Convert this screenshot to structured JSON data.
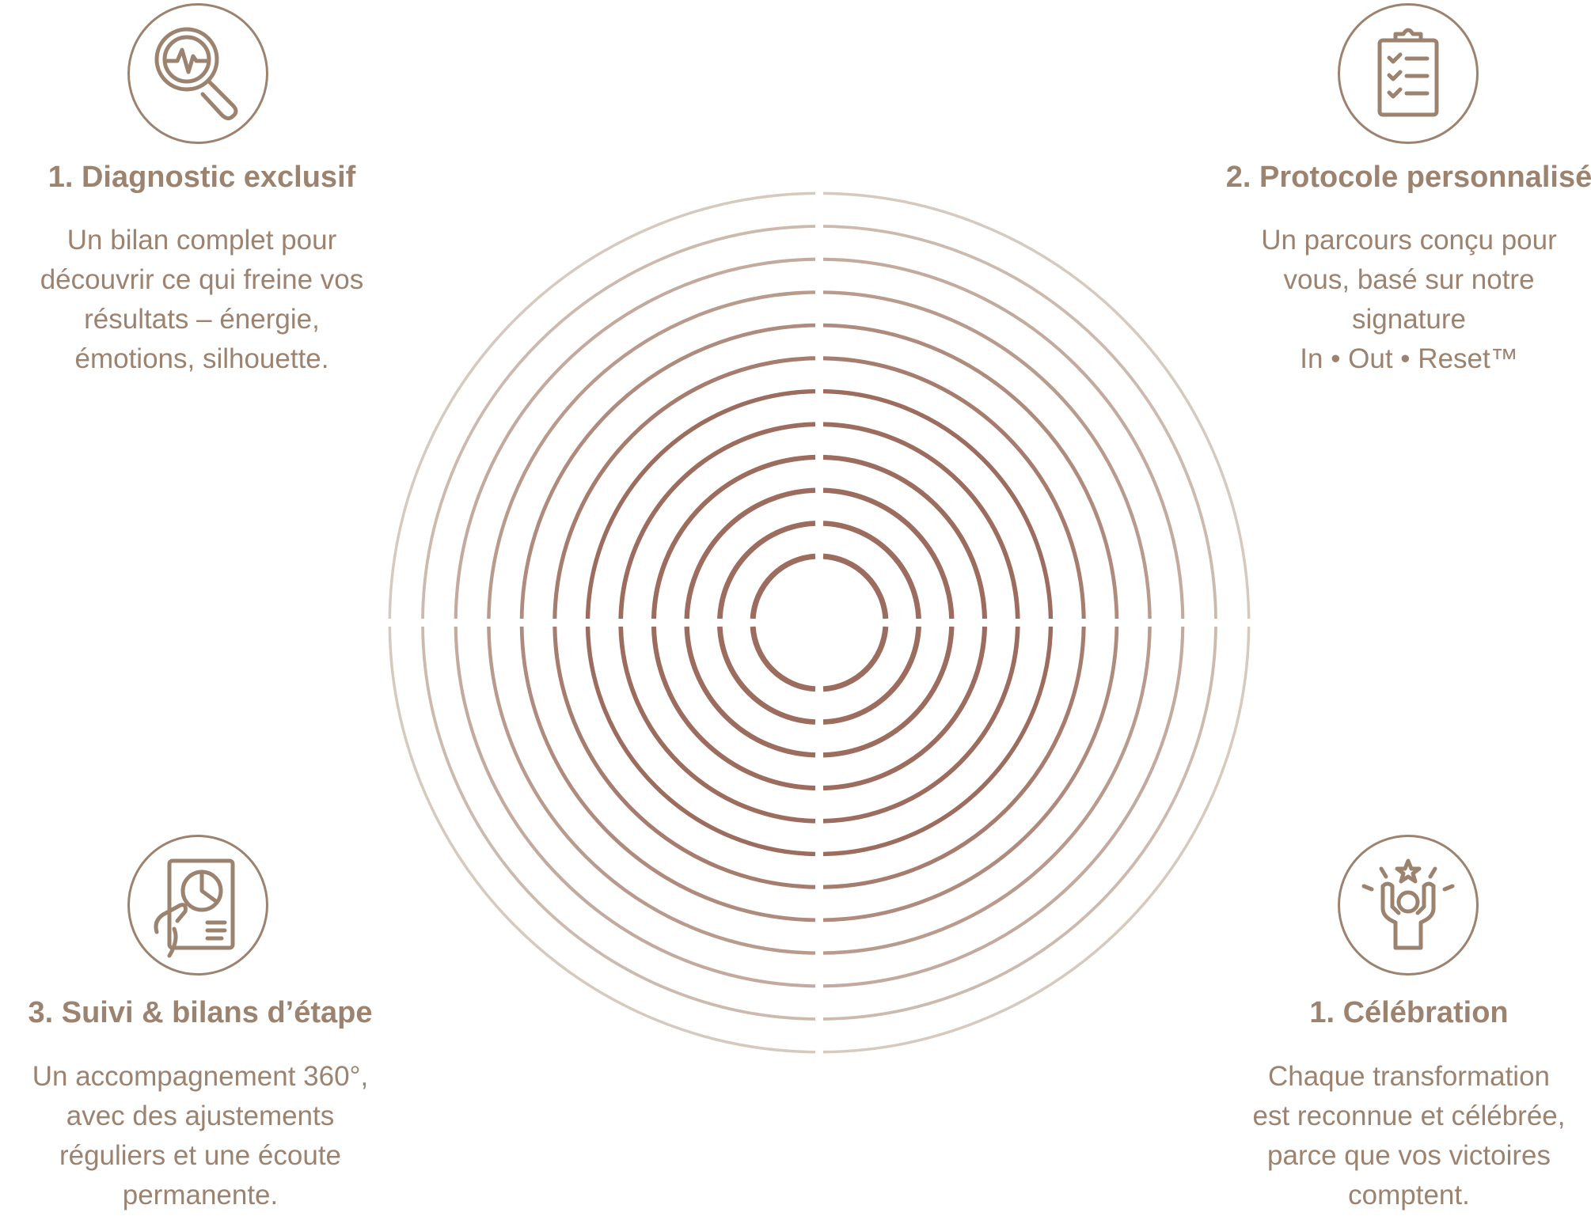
{
  "colors": {
    "accent": "#9c8370",
    "ring_outer": "#d6c9be"
  },
  "steps": [
    {
      "icon": "magnifier-heartbeat-icon",
      "title": "1. Diagnostic exclusif",
      "lines": [
        "Un bilan complet pour",
        "découvrir ce qui freine vos",
        "résultats – énergie,",
        "émotions, silhouette."
      ]
    },
    {
      "icon": "clipboard-checklist-icon",
      "title": "2. Protocole personnalisé",
      "lines": [
        "Un parcours conçu pour",
        "vous, basé sur notre",
        "signature",
        "In • Out • Reset™"
      ]
    },
    {
      "icon": "hand-report-chart-icon",
      "title": "3. Suivi & bilans d’étape",
      "lines": [
        "Un accompagnement 360°,",
        "avec des ajustements",
        "réguliers et une écoute",
        "permanente."
      ]
    },
    {
      "icon": "celebrating-person-star-icon",
      "title": "1. Célébration",
      "lines": [
        "Chaque transformation",
        "est reconnue et célébrée,",
        "parce que vos victoires",
        "comptent."
      ]
    }
  ]
}
